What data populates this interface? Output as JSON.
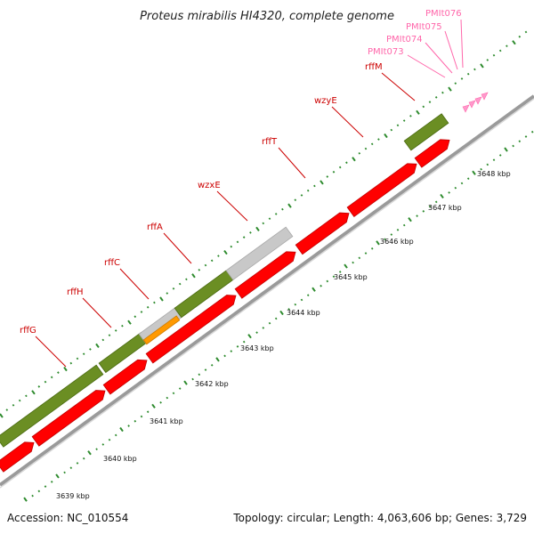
{
  "title": "Proteus mirabilis HI4320, complete genome",
  "accession": "Accession: NC_010554",
  "summary": "Topology: circular; Length: 4,063,606 bp; Genes: 3,729",
  "colors": {
    "cds": "#ff0000",
    "cds_dark": "#c00000",
    "gene": "#6b8e23",
    "gene_dark": "#4a6a12",
    "gray_feature": "#c8c8c8",
    "orange_feature": "#ff9900",
    "trna": "#ff99cc",
    "ticks": "#2e8b2e",
    "backbone": "#9a9a9a",
    "label_red": "#cc0000",
    "label_pink": "#ff66aa"
  },
  "scale_ticks": [
    "3639 kbp",
    "3640 kbp",
    "3641 kbp",
    "3642 kbp",
    "3643 kbp",
    "3644 kbp",
    "3645 kbp",
    "3646 kbp",
    "3647 kbp",
    "3648 kbp"
  ],
  "gene_labels": [
    {
      "name": "rffG",
      "color": "red"
    },
    {
      "name": "rffH",
      "color": "red"
    },
    {
      "name": "rffC",
      "color": "red"
    },
    {
      "name": "rffA",
      "color": "red"
    },
    {
      "name": "wzxE",
      "color": "red"
    },
    {
      "name": "rffT",
      "color": "red"
    },
    {
      "name": "wzyE",
      "color": "red"
    },
    {
      "name": "rffM",
      "color": "red"
    },
    {
      "name": "PMIt073",
      "color": "pink"
    },
    {
      "name": "PMIt074",
      "color": "pink"
    },
    {
      "name": "PMIt075",
      "color": "pink"
    },
    {
      "name": "PMIt076",
      "color": "pink"
    }
  ]
}
